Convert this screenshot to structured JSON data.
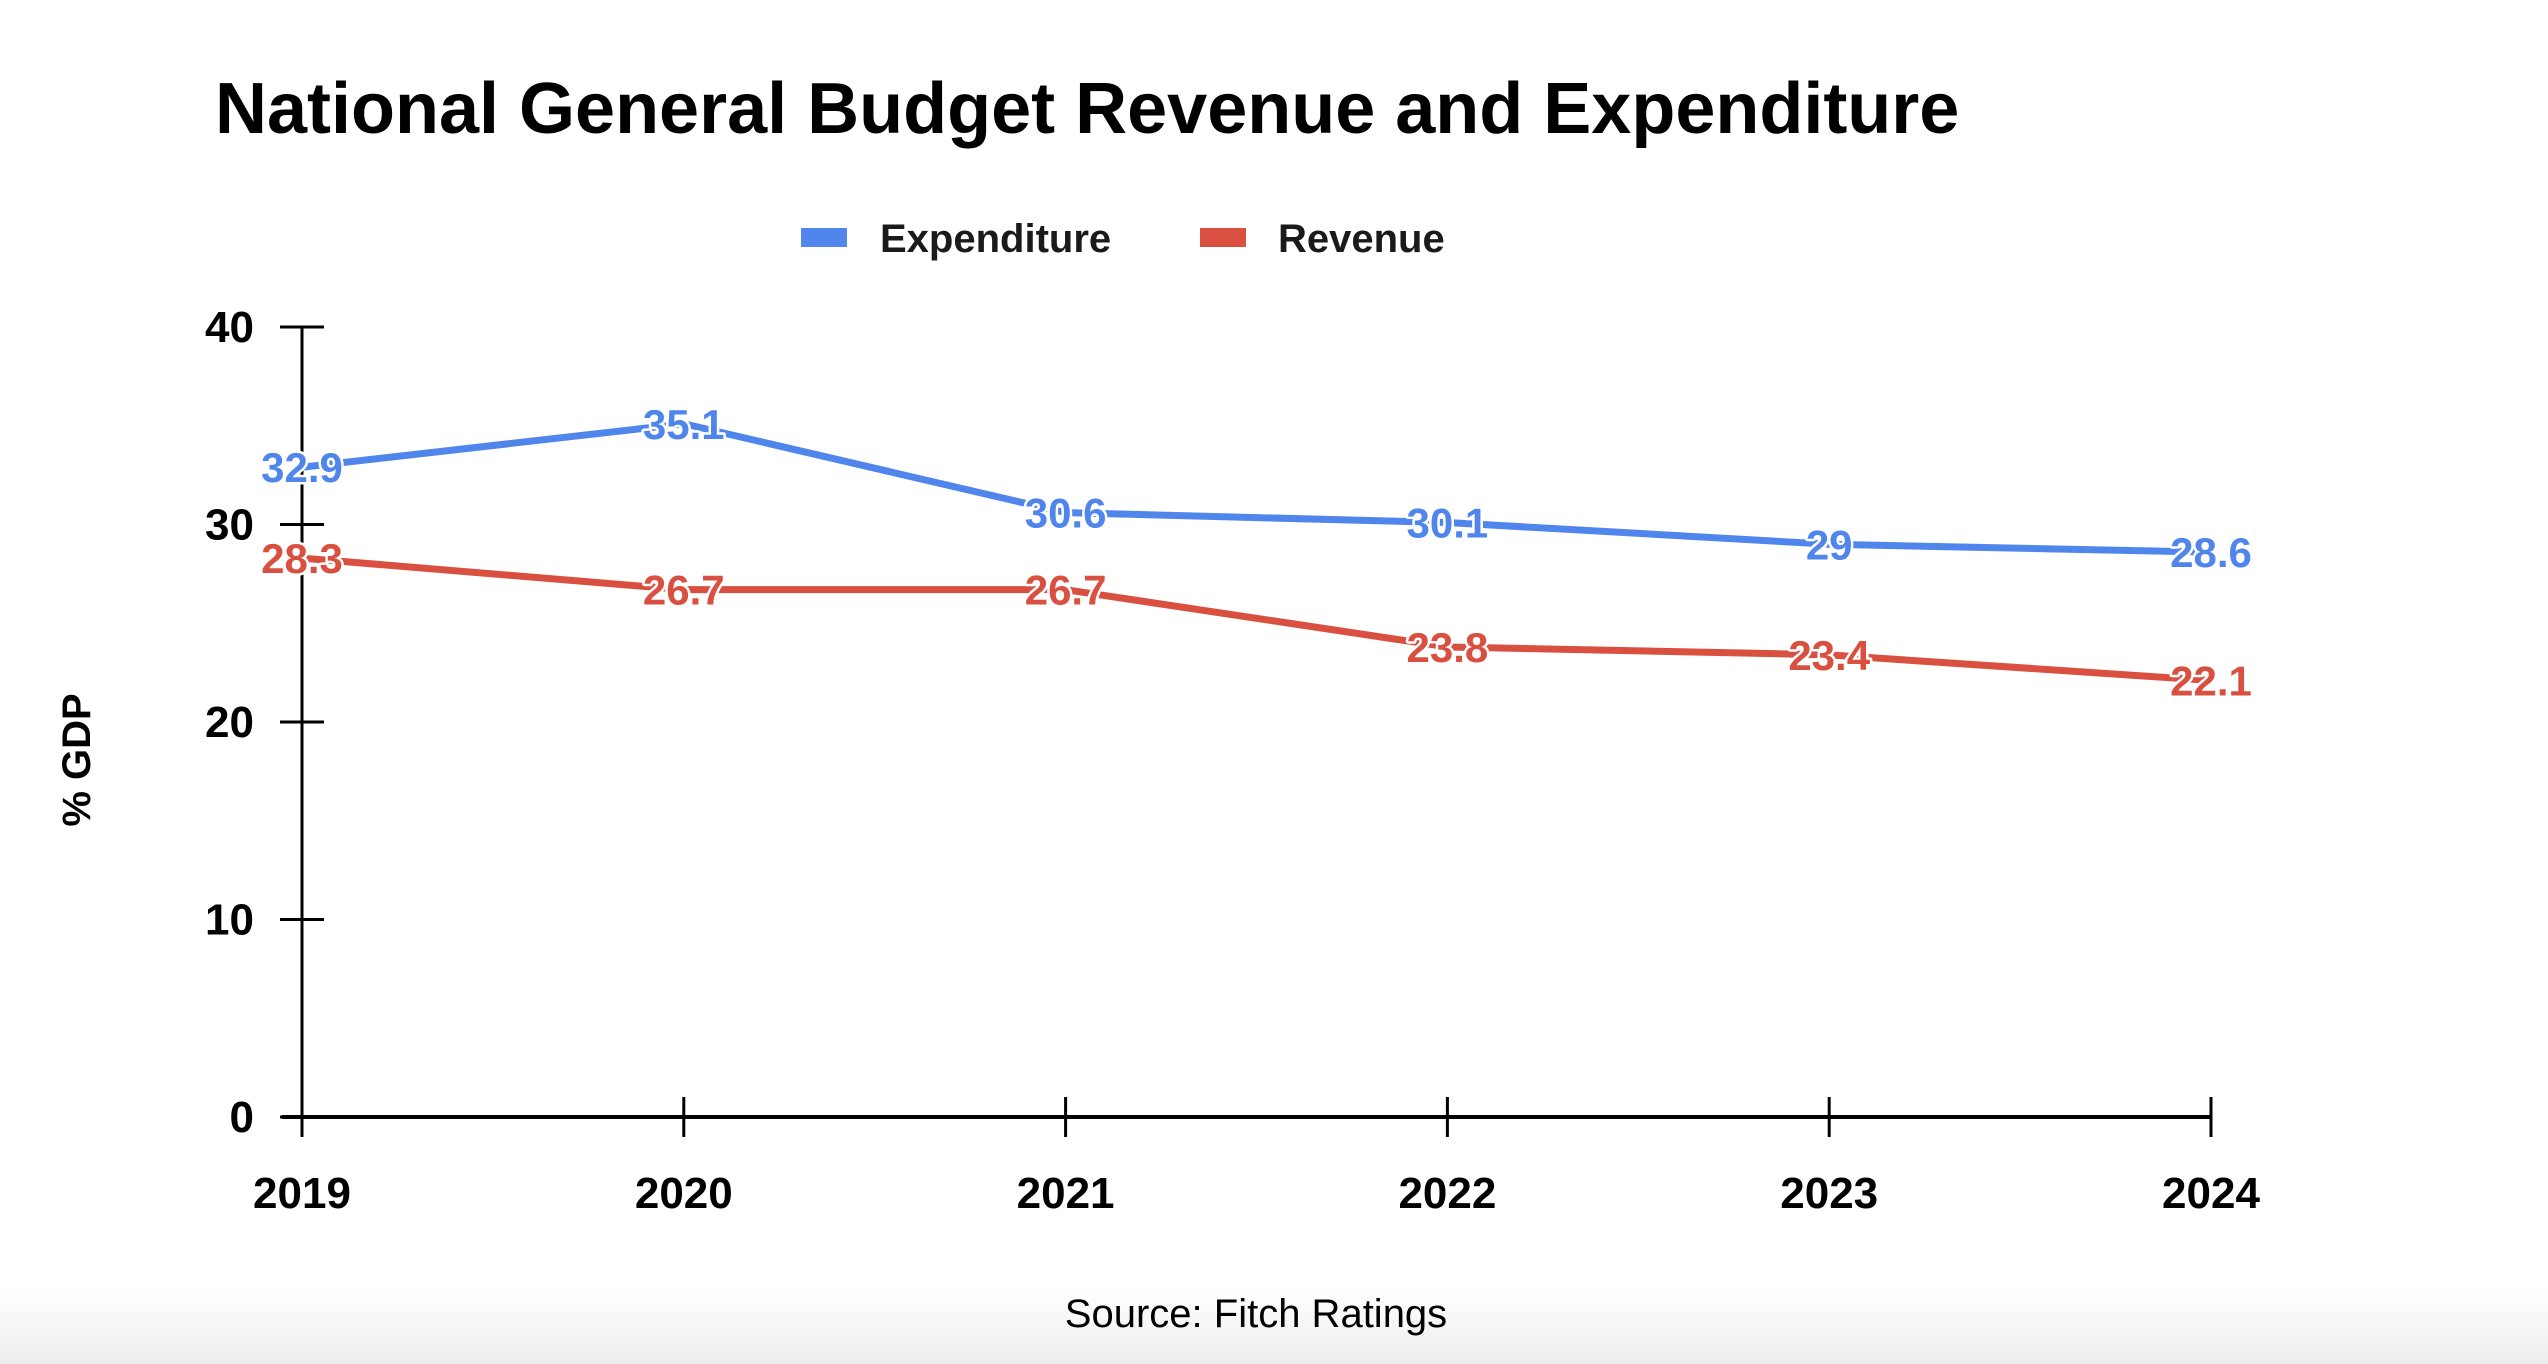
{
  "chart_data": {
    "type": "line",
    "title": "National General Budget Revenue and Expenditure",
    "categories": [
      "2019",
      "2020",
      "2021",
      "2022",
      "2023",
      "2024"
    ],
    "series": [
      {
        "name": "Expenditure",
        "color": "#5086EC",
        "values": [
          32.9,
          35.1,
          30.6,
          30.1,
          29,
          28.6
        ]
      },
      {
        "name": "Revenue",
        "color": "#D95040",
        "values": [
          28.3,
          26.7,
          26.7,
          23.8,
          23.4,
          22.1
        ]
      }
    ],
    "xlabel": "",
    "ylabel": "% GDP",
    "ylim": [
      0,
      40
    ],
    "yticks": [
      0,
      10,
      20,
      30,
      40
    ],
    "grid": false,
    "legend": "top-center",
    "data_labels": true,
    "source": "Source: Fitch Ratings"
  }
}
